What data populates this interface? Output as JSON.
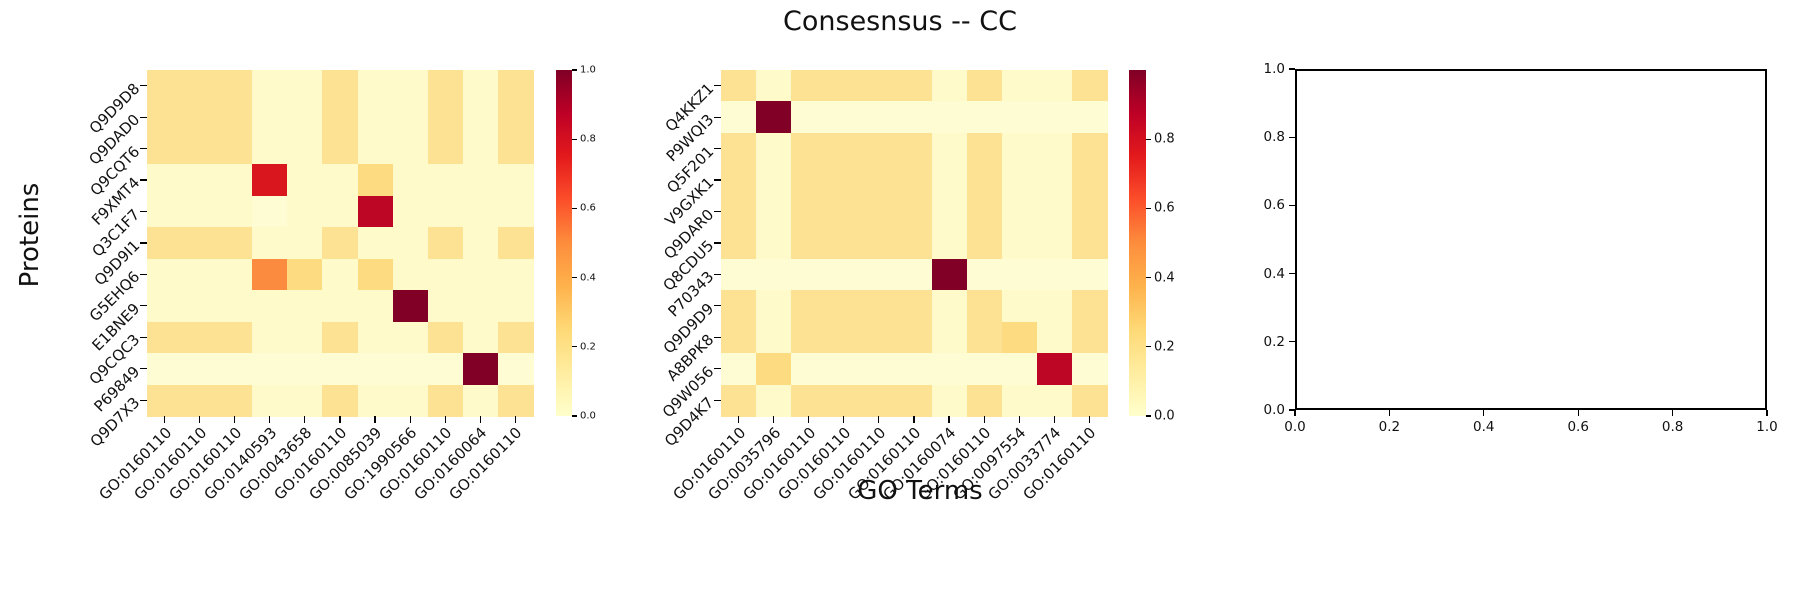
{
  "title": "Consesnsus -- CC",
  "xlabel": "GO Terms",
  "ylabel": "Proteins",
  "palette": {
    "0": "#FEFCD3",
    "0.02": "#FFFACA",
    "0.1": "#FEE294",
    "0.2": "#FDDB80",
    "0.5": "#FB8B3F",
    "0.8": "#D9161E",
    "0.87": "#BD0626",
    "1": "#800026"
  },
  "colorbar_gradient": [
    "#800026",
    "#BD0026",
    "#E31A1C",
    "#FC4E2A",
    "#FD8D3C",
    "#FEB24C",
    "#FED976",
    "#FFEDA0",
    "#FFFFCC"
  ],
  "chart_data": [
    {
      "type": "heatmap",
      "name": "consensus-heatmap-left",
      "rows": [
        "Q9D9D8",
        "Q9DAD0",
        "Q9CQT6",
        "F9XMT4",
        "Q3C1F7",
        "Q9D9I1",
        "G5EHQ6",
        "E1BNE9",
        "Q9CQC3",
        "P69849",
        "Q9D7X3"
      ],
      "cols": [
        "GO:0160110",
        "GO:0160110",
        "GO:0160110",
        "GO:0140593",
        "GO:0043658",
        "GO:0160110",
        "GO:0085039",
        "GO:1990566",
        "GO:0160110",
        "GO:0160064",
        "GO:0160110"
      ],
      "vmin": 0,
      "vmax": 1,
      "values": [
        [
          0.1,
          0.1,
          0.1,
          0.02,
          0.02,
          0.1,
          0.02,
          0.02,
          0.1,
          0.02,
          0.1
        ],
        [
          0.1,
          0.1,
          0.1,
          0.02,
          0.02,
          0.1,
          0.02,
          0.02,
          0.1,
          0.02,
          0.1
        ],
        [
          0.1,
          0.1,
          0.1,
          0.02,
          0.02,
          0.1,
          0.02,
          0.02,
          0.1,
          0.02,
          0.1
        ],
        [
          0.02,
          0.02,
          0.02,
          0.8,
          0.02,
          0.02,
          0.2,
          0.02,
          0.02,
          0.02,
          0.02
        ],
        [
          0.02,
          0.02,
          0.02,
          0,
          0.02,
          0.02,
          0.87,
          0.02,
          0.02,
          0.02,
          0.02
        ],
        [
          0.1,
          0.1,
          0.1,
          0.02,
          0.02,
          0.1,
          0.02,
          0.02,
          0.1,
          0.02,
          0.1
        ],
        [
          0.02,
          0.02,
          0.02,
          0.5,
          0.2,
          0.02,
          0.2,
          0.02,
          0.02,
          0.02,
          0.02
        ],
        [
          0.02,
          0.02,
          0.02,
          0.02,
          0.02,
          0.02,
          0.02,
          1,
          0.02,
          0.02,
          0.02
        ],
        [
          0.1,
          0.1,
          0.1,
          0.02,
          0.02,
          0.1,
          0.02,
          0.02,
          0.1,
          0.02,
          0.1
        ],
        [
          0,
          0,
          0,
          0,
          0,
          0,
          0,
          0,
          0,
          1,
          0
        ],
        [
          0.1,
          0.1,
          0.1,
          0.02,
          0.02,
          0.1,
          0.02,
          0.02,
          0.1,
          0.02,
          0.1
        ]
      ],
      "colorbar_ticks": [
        "1.0",
        "0.8",
        "0.6",
        "0.4",
        "0.2",
        "0.0"
      ]
    },
    {
      "type": "heatmap",
      "name": "consensus-heatmap-middle",
      "rows": [
        "Q4KKZ1",
        "P9WQI3",
        "Q5F201",
        "V9GXK1",
        "Q9DAR0",
        "Q8CDU5",
        "P70343",
        "Q9D9D9",
        "A8BPK8",
        "Q9W056",
        "Q9D4K7"
      ],
      "cols": [
        "GO:0160110",
        "GO:0035796",
        "GO:0160110",
        "GO:0160110",
        "GO:0160110",
        "GO:0160110",
        "GO:0160074",
        "GO:0160110",
        "GO:0097554",
        "GO:0033774",
        "GO:0160110"
      ],
      "vmin": 0,
      "vmax": 1,
      "values": [
        [
          0.1,
          0.02,
          0.1,
          0.1,
          0.1,
          0.1,
          0.02,
          0.1,
          0.02,
          0.02,
          0.1
        ],
        [
          0,
          1,
          0,
          0,
          0,
          0,
          0,
          0,
          0,
          0,
          0
        ],
        [
          0.1,
          0.02,
          0.1,
          0.1,
          0.1,
          0.1,
          0.02,
          0.1,
          0.02,
          0.02,
          0.1
        ],
        [
          0.1,
          0.02,
          0.1,
          0.1,
          0.1,
          0.1,
          0.02,
          0.1,
          0.02,
          0.02,
          0.1
        ],
        [
          0.1,
          0.02,
          0.1,
          0.1,
          0.1,
          0.1,
          0.02,
          0.1,
          0.02,
          0.02,
          0.1
        ],
        [
          0.1,
          0.02,
          0.1,
          0.1,
          0.1,
          0.1,
          0.02,
          0.1,
          0.02,
          0.02,
          0.1
        ],
        [
          0,
          0,
          0,
          0,
          0,
          0,
          1,
          0,
          0,
          0,
          0
        ],
        [
          0.1,
          0.02,
          0.1,
          0.1,
          0.1,
          0.1,
          0.02,
          0.1,
          0.02,
          0.02,
          0.1
        ],
        [
          0.1,
          0.02,
          0.1,
          0.1,
          0.1,
          0.1,
          0.02,
          0.1,
          0.2,
          0.02,
          0.1
        ],
        [
          0,
          0.2,
          0,
          0,
          0,
          0,
          0,
          0,
          0,
          0.87,
          0
        ],
        [
          0.1,
          0.02,
          0.1,
          0.1,
          0.1,
          0.1,
          0.02,
          0.1,
          0.02,
          0.02,
          0.1
        ]
      ],
      "colorbar_ticks": [
        "0.8",
        "0.6",
        "0.4",
        "0.2",
        "0.0"
      ]
    },
    {
      "type": "empty-axes",
      "name": "empty-panel",
      "xticks": [
        "0.0",
        "0.2",
        "0.4",
        "0.6",
        "0.8",
        "1.0"
      ],
      "yticks": [
        "0.0",
        "0.2",
        "0.4",
        "0.6",
        "0.8",
        "1.0"
      ]
    }
  ]
}
